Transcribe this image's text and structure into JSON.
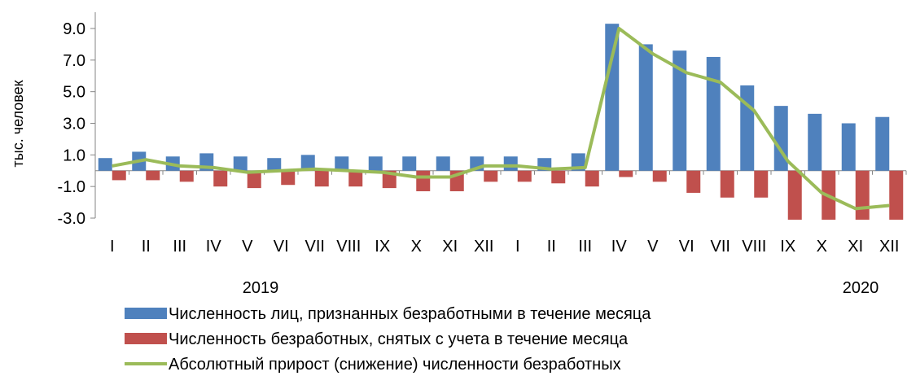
{
  "chart_data": {
    "type": "bar",
    "ylabel": "тыс. человек",
    "ylim": [
      -3.0,
      10.0
    ],
    "yticks": [
      "9.0",
      "7.0",
      "5.0",
      "3.0",
      "1.0",
      "-1.0",
      "-3.0"
    ],
    "ytick_values": [
      9,
      7,
      5,
      3,
      1,
      -1,
      -3
    ],
    "categories": [
      "I",
      "II",
      "III",
      "IV",
      "V",
      "VI",
      "VII",
      "VIII",
      "IX",
      "X",
      "XI",
      "XII",
      "I",
      "II",
      "III",
      "IV",
      "V",
      "VI",
      "VII",
      "VIII",
      "IX",
      "X",
      "XI",
      "XII"
    ],
    "year_labels": [
      "2019",
      "2020"
    ],
    "grid": false,
    "legend_position": "bottom",
    "series": [
      {
        "name": "Численность лиц, признанных безработными в течение месяца",
        "kind": "bar",
        "color": "#4F81BD",
        "values": [
          0.8,
          1.2,
          0.9,
          1.1,
          0.9,
          0.8,
          1.0,
          0.9,
          0.9,
          0.9,
          0.9,
          0.9,
          0.9,
          0.8,
          1.1,
          9.3,
          8.0,
          7.6,
          7.2,
          5.4,
          4.1,
          3.6,
          3.0,
          3.4
        ]
      },
      {
        "name": "Численность безработных, снятых с учета в течение месяца",
        "kind": "bar",
        "color": "#C0504D",
        "values": [
          -0.6,
          -0.6,
          -0.7,
          -1.0,
          -1.1,
          -0.9,
          -1.0,
          -1.0,
          -1.1,
          -1.3,
          -1.3,
          -0.7,
          -0.7,
          -0.8,
          -1.0,
          -0.4,
          -0.7,
          -1.4,
          -1.7,
          -1.7,
          -3.1,
          -3.1,
          -3.1,
          -3.1
        ]
      },
      {
        "name": "Абсолютный прирост (снижение) численности безработных",
        "kind": "line",
        "color": "#9BBB59",
        "values": [
          0.3,
          0.7,
          0.3,
          0.2,
          -0.1,
          0.0,
          0.1,
          0.0,
          -0.1,
          -0.4,
          -0.4,
          0.3,
          0.3,
          0.1,
          0.2,
          9.0,
          7.4,
          6.2,
          5.6,
          3.8,
          0.6,
          -1.4,
          -2.4,
          -2.2
        ]
      }
    ]
  }
}
